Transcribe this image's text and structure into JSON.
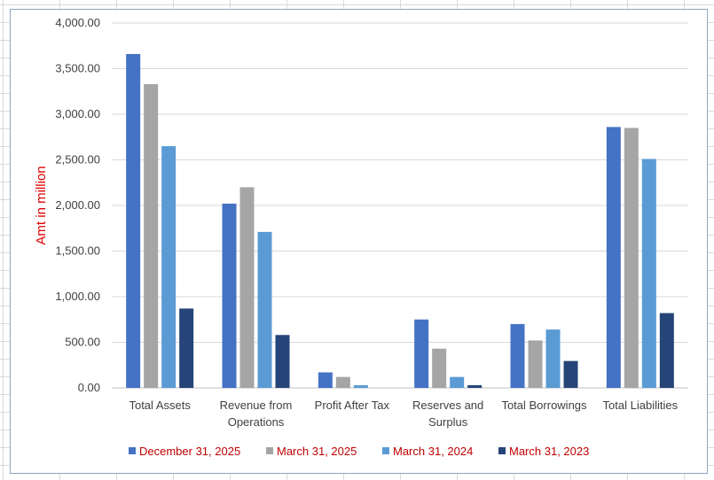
{
  "chart_data": {
    "type": "bar",
    "title": "",
    "xlabel": "",
    "ylabel": "Amt in million",
    "ylim": [
      0,
      4000
    ],
    "yticks": [
      0,
      500,
      1000,
      1500,
      2000,
      2500,
      3000,
      3500,
      4000
    ],
    "ytick_labels": [
      "0.00",
      "500.00",
      "1,000.00",
      "1,500.00",
      "2,000.00",
      "2,500.00",
      "3,000.00",
      "3,500.00",
      "4,000.00"
    ],
    "grid": true,
    "legend_position": "bottom",
    "categories": [
      [
        "Total Assets"
      ],
      [
        "Revenue from",
        "Operations"
      ],
      [
        "Profit After Tax"
      ],
      [
        "Reserves and",
        "Surplus"
      ],
      [
        "Total Borrowings"
      ],
      [
        "Total Liabilities"
      ]
    ],
    "series": [
      {
        "name": "December 31, 2025",
        "color": "#4472c4",
        "values": [
          3660,
          2020,
          170,
          750,
          700,
          2860
        ]
      },
      {
        "name": "March 31, 2025",
        "color": "#a5a5a5",
        "values": [
          3330,
          2200,
          120,
          430,
          520,
          2850
        ]
      },
      {
        "name": "March 31, 2024",
        "color": "#5b9bd5",
        "values": [
          2650,
          1710,
          30,
          120,
          640,
          2510
        ]
      },
      {
        "name": "March 31, 2023",
        "color": "#264478",
        "values": [
          870,
          580,
          0,
          30,
          295,
          820
        ]
      }
    ],
    "colors": {
      "gridline": "#d9d9d9",
      "axis": "#bfbfbf",
      "ylabel": "#e00000",
      "legend_text": "#c00000"
    }
  }
}
